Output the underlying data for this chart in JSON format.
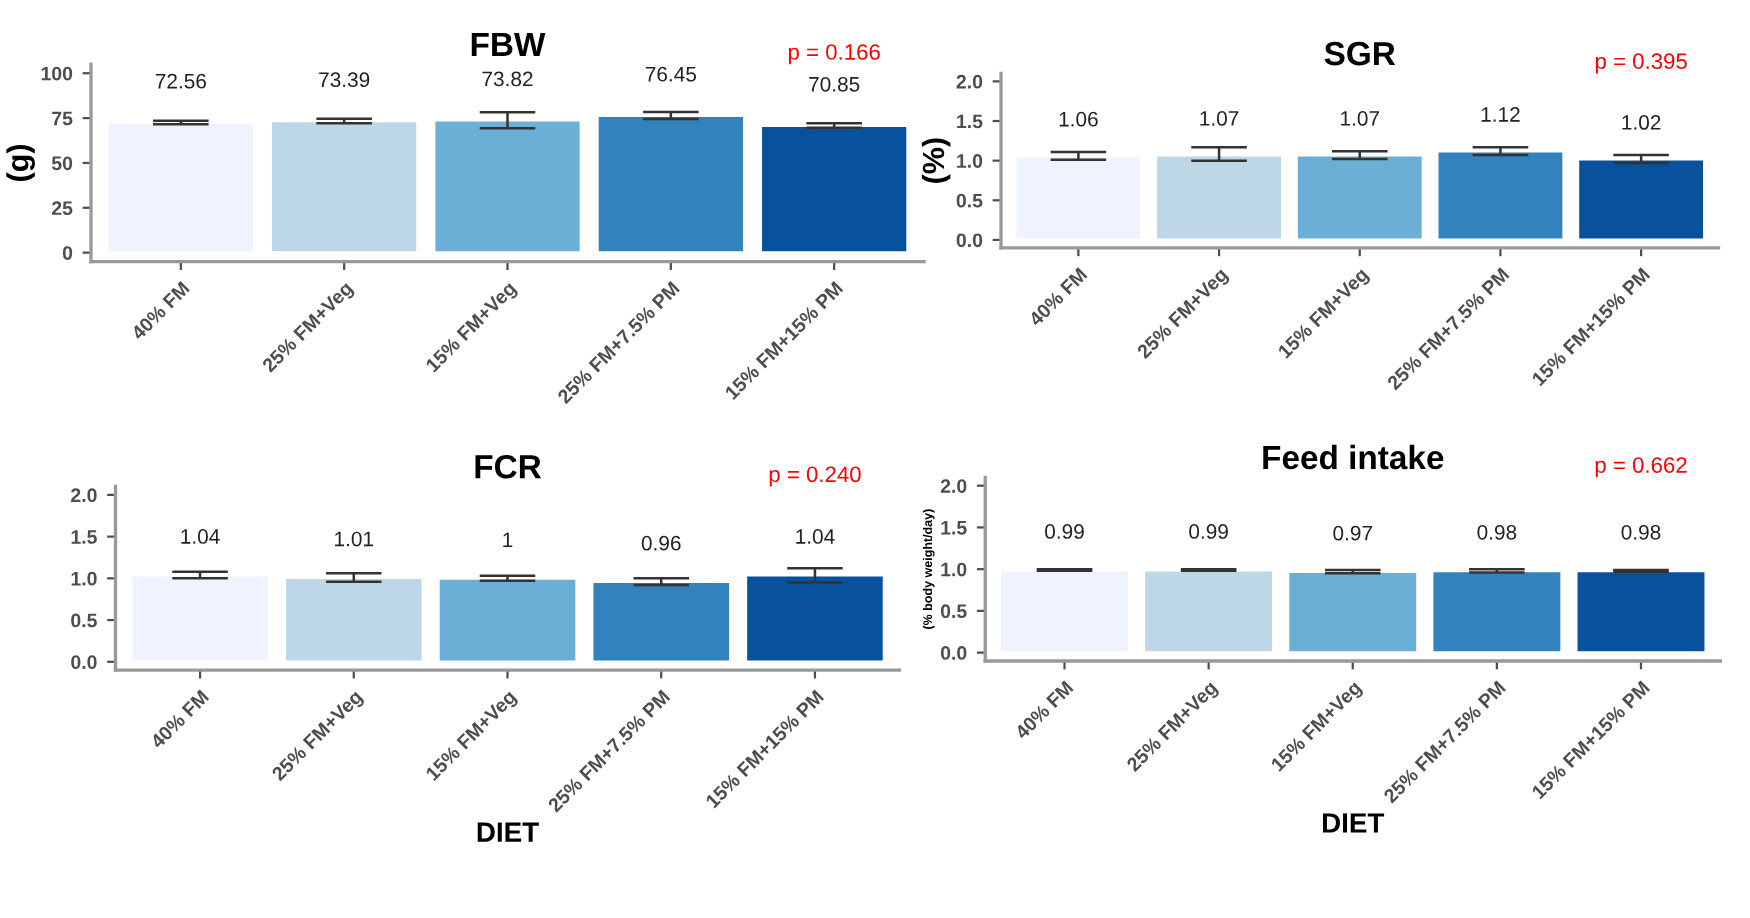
{
  "chart_data": [
    {
      "type": "bar",
      "title": "FBW",
      "ylabel": "(g)",
      "categories": [
        "40% FM",
        "25% FM+Veg",
        "15% FM+Veg",
        "25% FM+7.5% PM",
        "15% FM+15% PM"
      ],
      "values": [
        72.56,
        73.39,
        73.82,
        76.45,
        70.85
      ],
      "errors": [
        1,
        1.3,
        4.5,
        2,
        1.3
      ],
      "colors": [
        "#eff3ff",
        "#bdd7e7",
        "#6baed6",
        "#3182bd",
        "#08519c"
      ],
      "ylim": [
        -5,
        105
      ],
      "yticks": [
        0,
        25,
        50,
        75,
        100
      ],
      "data_labels": true,
      "annotations": [
        "p = 0.166"
      ],
      "grid": false,
      "legend": false
    },
    {
      "type": "bar",
      "title": "SGR",
      "ylabel": "(%)",
      "categories": [
        "40% FM",
        "25% FM+Veg",
        "15% FM+Veg",
        "25% FM+7.5% PM",
        "15% FM+15% PM"
      ],
      "values": [
        1.06,
        1.07,
        1.07,
        1.12,
        1.02
      ],
      "errors": [
        0.05,
        [
          1.0,
          1.17
        ],
        0.05,
        0.05,
        0.05
      ],
      "colors": [
        "#eff3ff",
        "#bdd7e7",
        "#6baed6",
        "#3182bd",
        "#08519c"
      ],
      "ylim": [
        -0.1,
        2.1
      ],
      "yticks": [
        {
          "value": 0,
          "label": "0.0"
        },
        0.5,
        {
          "value": 1,
          "label": "1.0"
        },
        1.5,
        {
          "value": 2,
          "label": "2.0"
        }
      ],
      "data_labels": true,
      "annotations": [
        "p = 0.395"
      ],
      "grid": false,
      "legend": false
    },
    {
      "type": "bar",
      "title": "FCR",
      "xlabel": "DIET",
      "categories": [
        "40% FM",
        "25% FM+Veg",
        "15% FM+Veg",
        "25% FM+7.5% PM",
        "15% FM+15% PM"
      ],
      "values": [
        1.04,
        1.01,
        1,
        0.96,
        1.04
      ],
      "errors": [
        0.04,
        0.05,
        0.03,
        0.04,
        [
          0.95,
          1.12
        ]
      ],
      "colors": [
        "#eff3ff",
        "#bdd7e7",
        "#6baed6",
        "#3182bd",
        "#08519c"
      ],
      "ylim": [
        -0.1,
        2.1
      ],
      "yticks": [
        {
          "value": 0,
          "label": "0.0"
        },
        0.5,
        {
          "value": 1,
          "label": "1.0"
        },
        1.5,
        {
          "value": 2,
          "label": "2.0"
        }
      ],
      "data_labels": true,
      "annotations": [
        "p = 0.240"
      ],
      "grid": false,
      "legend": false
    },
    {
      "type": "bar",
      "title": "Feed intake",
      "xlabel": "DIET",
      "ylabel": "(% body weight/day)",
      "categories": [
        "40% FM",
        "25% FM+Veg",
        "15% FM+Veg",
        "25% FM+7.5% PM",
        "15% FM+15% PM"
      ],
      "values": [
        0.99,
        0.99,
        0.97,
        0.98,
        0.98
      ],
      "errors": [
        0.01,
        0.01,
        0.02,
        0.02,
        0.01
      ],
      "colors": [
        "#eff3ff",
        "#bdd7e7",
        "#6baed6",
        "#3182bd",
        "#08519c"
      ],
      "ylim": [
        -0.1,
        2.1
      ],
      "yticks": [
        {
          "value": 0,
          "label": "0.0"
        },
        0.5,
        {
          "value": 1,
          "label": "1.0"
        },
        1.5,
        {
          "value": 2,
          "label": "2.0"
        }
      ],
      "data_labels": true,
      "annotations": [
        "p = 0.662"
      ],
      "grid": false,
      "legend": false
    }
  ]
}
